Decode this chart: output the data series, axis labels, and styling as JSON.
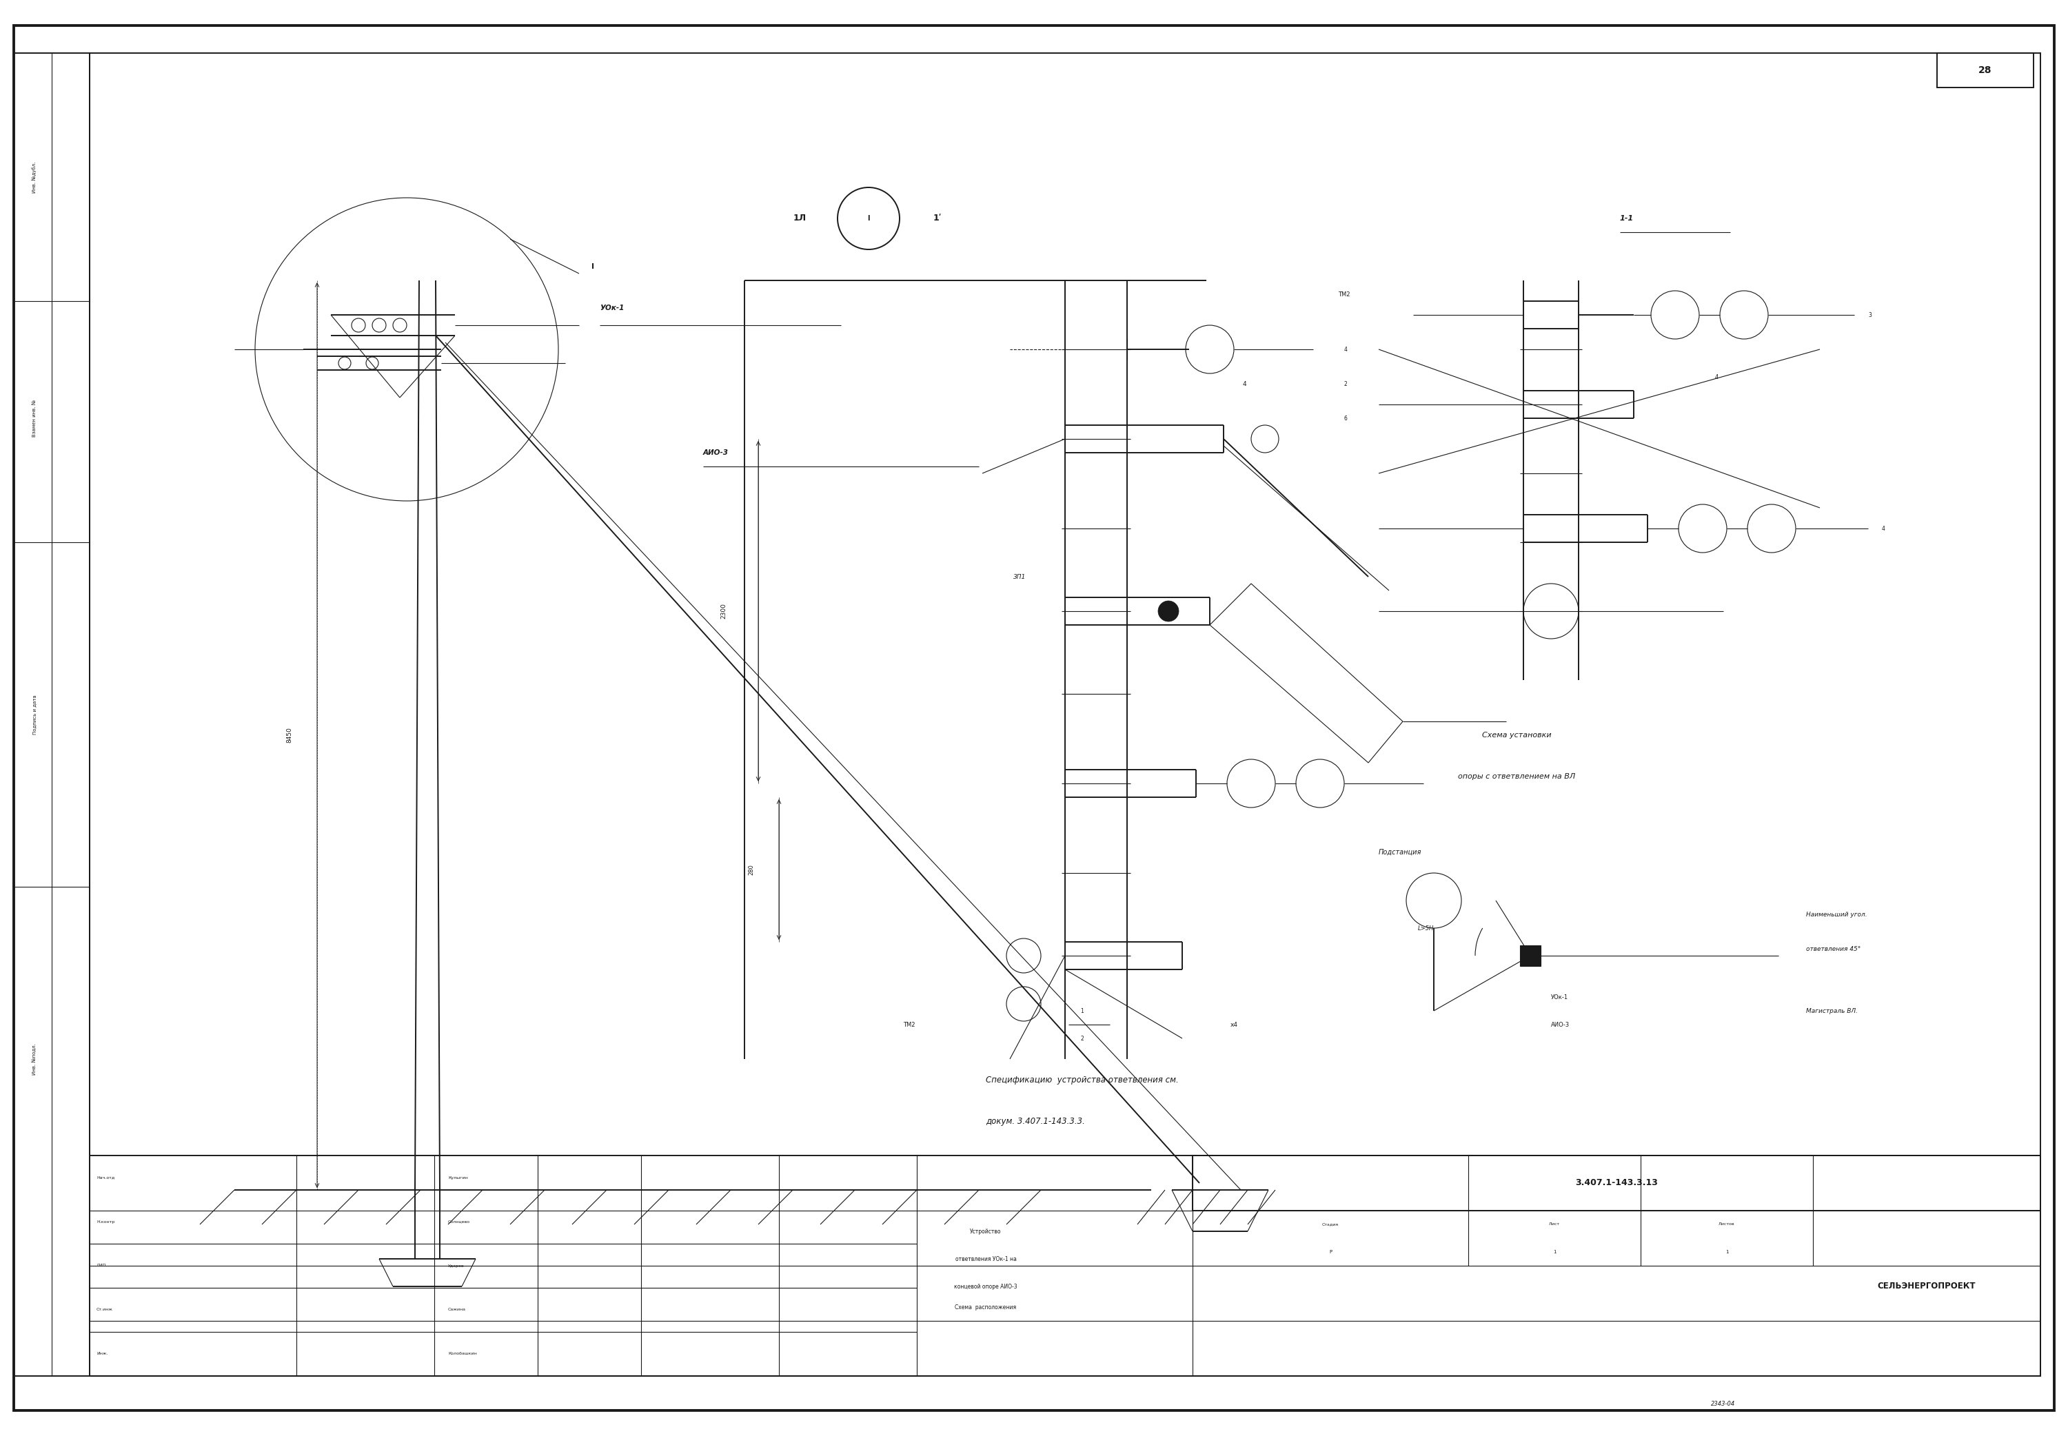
{
  "bg_color": "#ffffff",
  "line_color": "#1a1a1a",
  "page_width": 30.0,
  "page_height": 20.87,
  "title_doc_num": "3.407.1-143.3.13",
  "title_line1": "Устройство",
  "title_line2": "ответвления УОк-1 на",
  "title_line3": "концевой опоре АИО-3",
  "title_line4": "Схема  расположения",
  "org_name": "СЕЛЬЭНЕРГОПРОЕКТ",
  "page_num": "28",
  "schema_title1": "Схема установки",
  "schema_title2": "опоры с ответвлением на ВЛ",
  "spec_text1": "Спецификацию  устройства ответвления см.",
  "spec_text2": "докум. 3.407.1-143.3.3.",
  "stamp_nac": "Нач.отд",
  "stamp_nkont": "Н.контр",
  "stamp_gip": "ГИП",
  "stamp_stinj": "Ст.инж",
  "stamp_inj": "Инж.",
  "stamp_nac_name": "Кулыгин",
  "stamp_nkont_name": "Солнцево",
  "stamp_gip_name": "Ударов",
  "stamp_stinj_name": "Сажина",
  "stamp_inj_name": "Колобашкин",
  "stadia": "Стадия",
  "list_": "Лист",
  "listov": "Листов",
  "p_val": "Р",
  "list_val": "1",
  "listov_val": "1",
  "label_I": "I",
  "label_1L": "1Л",
  "label_1prime": "1ʹ",
  "label_1_1": "1-1",
  "label_UOK1": "УОк-1",
  "label_A103": "АИО-3",
  "label_8450": "8450",
  "label_2300": "2300",
  "label_280": "280",
  "label_3P1": "3П1",
  "label_TM2": "ТМ2",
  "label_x4": "х4",
  "label_4": "4",
  "label_podstancia": "Подстанция",
  "label_ugol": "Наименьший угол.",
  "label_otvetv": "ответвления 45°",
  "label_magistral": "Магистраль ВЛ.",
  "label_L5H": "L>5H",
  "ref_num": "2343-04"
}
